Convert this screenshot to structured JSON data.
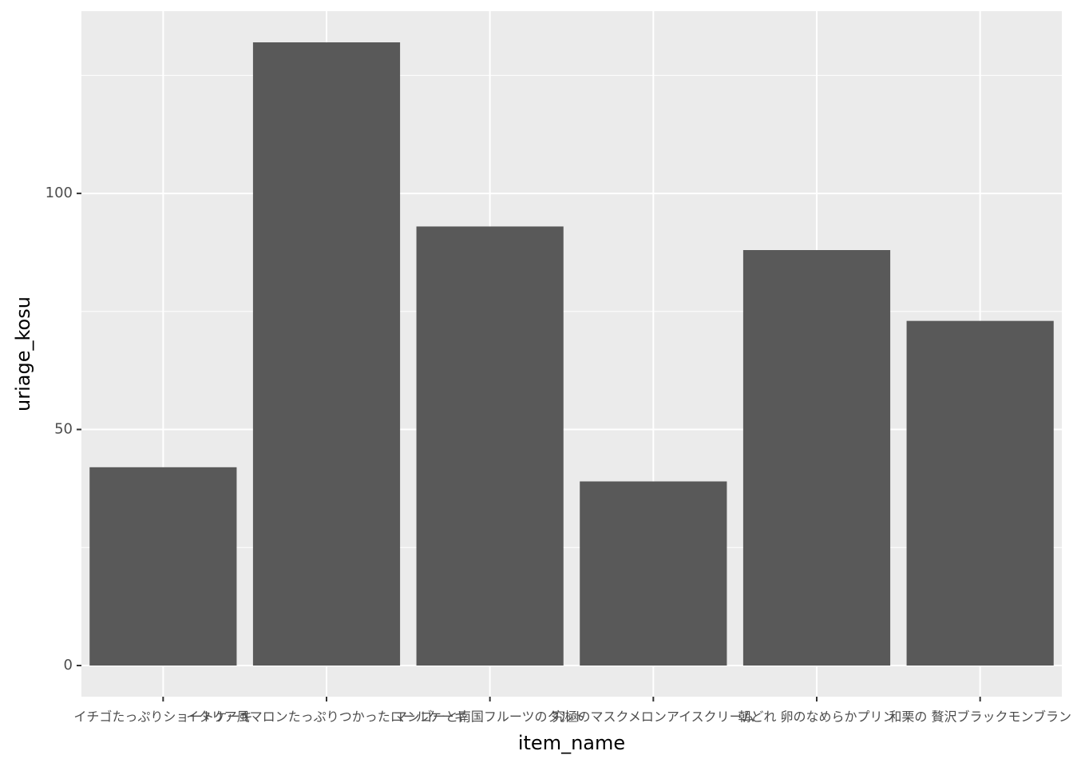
{
  "chart_data": {
    "type": "bar",
    "x_label": "item_name",
    "y_label": "uriage_kosu",
    "categories": [
      "イチゴたっぷりショートケーキ",
      "イタリア風マロンたっぷりつかったロールケーキ",
      "マンゴーと南国フルーツのタルト",
      "究極のマスクメロンアイスクリーム",
      "朝どれ 卵のなめらかプリン",
      "和栗の 贅沢ブラックモンブラン"
    ],
    "values": [
      42,
      132,
      93,
      39,
      88,
      73
    ],
    "color": "#595959",
    "ylim": [
      -6.6,
      138.6
    ],
    "yticks": [
      0,
      50,
      100
    ],
    "yminor": [
      25,
      75,
      125
    ],
    "grid": true
  }
}
